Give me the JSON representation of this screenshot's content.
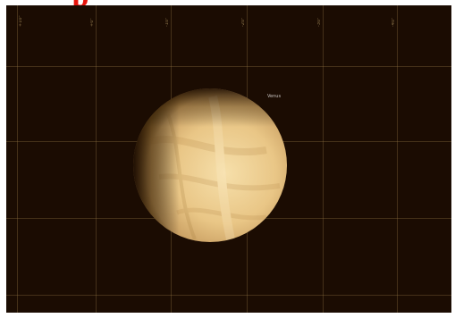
{
  "header": {
    "glyph": "p"
  },
  "sky_view": {
    "grid_labels": [
      "+10°",
      "+0°",
      "-10°",
      "-20°",
      "-30°",
      "-40°"
    ],
    "target": {
      "name": "Venus",
      "icon": "venus-planet-icon"
    }
  },
  "colors": {
    "background": "#1b0c02",
    "grid": "#96784a",
    "planet_light": "#f3d9a2",
    "planet_mid": "#e2bb78",
    "planet_shadow": "#3a2408",
    "glyph": "#e8140c"
  }
}
